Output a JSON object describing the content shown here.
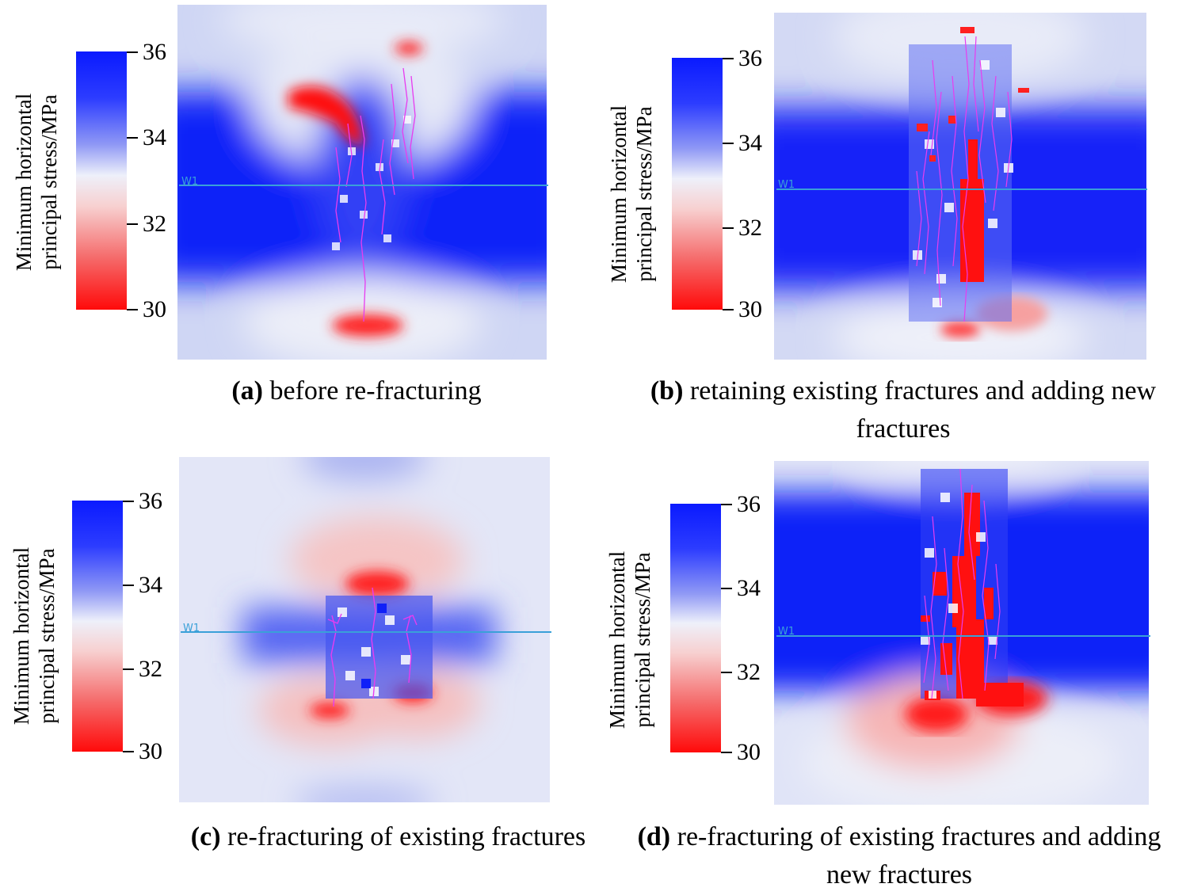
{
  "colorbar": {
    "title_line1": "Minimum  horizontal",
    "title_line2": "principal stress/MPa",
    "ticks": [
      "36",
      "34",
      "32",
      "30"
    ],
    "max_color": "#0a1aff",
    "mid_color": "#eef0fa",
    "min_color": "#ff0a0a"
  },
  "well_label": "W1",
  "fracture_color": "#e83cf0",
  "panels": [
    {
      "letter": "(a)",
      "text": " before re-fracturing"
    },
    {
      "letter": "(b)",
      "text": " retaining existing fractures and adding new fractures"
    },
    {
      "letter": "(c)",
      "text": " re-fracturing of existing fractures"
    },
    {
      "letter": "(d)",
      "text": " re-fracturing of existing fractures and adding new fractures"
    }
  ]
}
